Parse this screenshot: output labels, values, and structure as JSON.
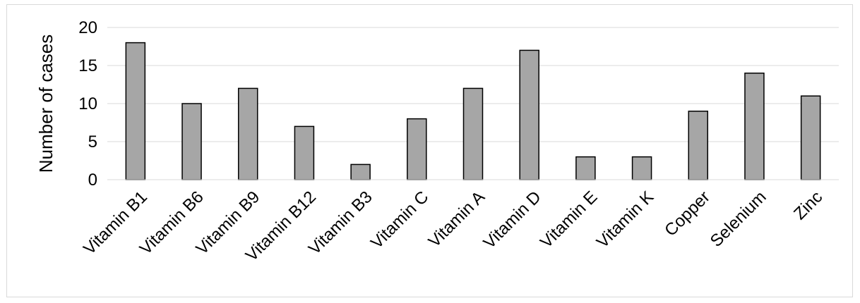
{
  "chart_data": {
    "type": "bar",
    "title": "",
    "xlabel": "",
    "ylabel": "Number of cases",
    "ylim": [
      0,
      20
    ],
    "yticks": [
      0,
      5,
      10,
      15,
      20
    ],
    "grid": true,
    "legend": "none",
    "bar_color": "#a6a6a6",
    "categories": [
      "Vitamin B1",
      "Vitamin B6",
      "Vitamin B9",
      "Vitamin B12",
      "Vitamin B3",
      "Vitamin C",
      "Vitamin A",
      "Vitamin D",
      "Vitamin E",
      "Vitamin K",
      "Copper",
      "Selenium",
      "Zinc"
    ],
    "values": [
      18,
      10,
      12,
      7,
      2,
      8,
      12,
      17,
      3,
      3,
      9,
      14,
      11
    ]
  }
}
